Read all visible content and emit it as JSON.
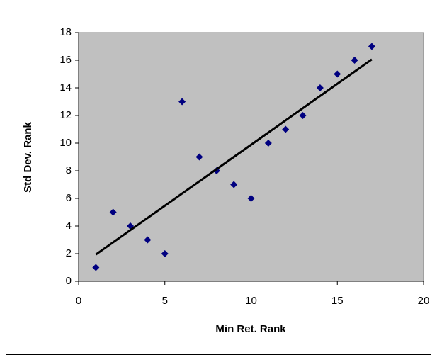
{
  "chart_data": {
    "type": "scatter",
    "xlabel": "Min Ret. Rank",
    "ylabel": "Std Dev. Rank",
    "series": [
      {
        "color": "#000080",
        "x": [
          1,
          2,
          3,
          4,
          5,
          6,
          7,
          8,
          9,
          10,
          11,
          12,
          13,
          14,
          15,
          16,
          17
        ],
        "values": [
          1,
          5,
          4,
          3,
          2,
          13,
          9,
          8,
          7,
          6,
          10,
          11,
          12,
          14,
          15,
          16,
          17
        ]
      }
    ],
    "trendline": {
      "color": "#000000",
      "x": [
        1,
        17
      ],
      "y": [
        1.94,
        16.06
      ]
    },
    "xlim": [
      0,
      20
    ],
    "xticks": [
      0,
      5,
      10,
      15,
      20
    ],
    "ylim": [
      0,
      18
    ],
    "yticks": [
      0,
      2,
      4,
      6,
      8,
      10,
      12,
      14,
      16,
      18
    ],
    "plot_background": "#c0c0c0"
  }
}
